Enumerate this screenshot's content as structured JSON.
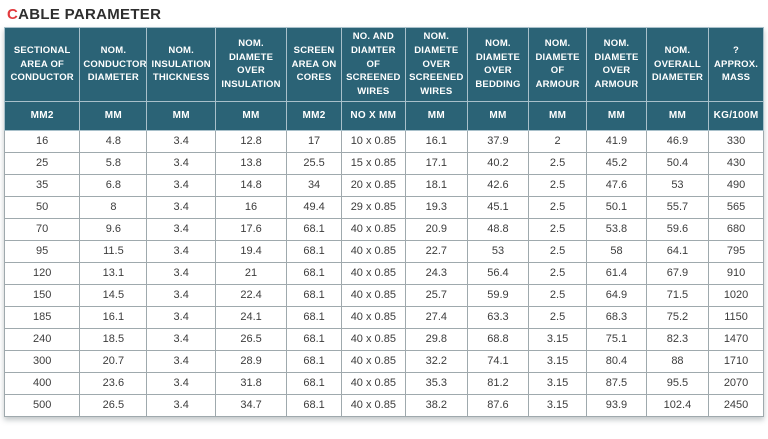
{
  "title": {
    "accent": "C",
    "rest": "ABLE PARAMETER"
  },
  "colors": {
    "header_bg": "#2b6376",
    "header_text": "#ffffff",
    "header_border": "#a8c0ca",
    "title_accent": "#e23a3e",
    "title_text": "#2e2e2e",
    "cell_border": "#9fa9ad",
    "cell_text": "#3c3c3c"
  },
  "chart_data": {
    "type": "table",
    "title": "CABLE PARAMETER",
    "columns": [
      "SECTIONAL AREA OF CONDUCTOR",
      "NOM. CONDUCTOR DIAMETER",
      "NOM. INSULATION THICKNESS",
      "NOM. DIAMETE OVER INSULATION",
      "SCREEN AREA ON CORES",
      "NO. AND DIAMTER OF SCREENED WIRES",
      "NOM. DIAMETE OVER SCREENED WIRES",
      "NOM. DIAMETE OVER BEDDING",
      "NOM. DIAMETE OF ARMOUR",
      "NOM. DIAMETE OVER ARMOUR",
      "NOM. OVERALL DIAMETER",
      "? APPROX. MASS"
    ],
    "units": [
      "MM2",
      "MM",
      "MM",
      "MM",
      "MM2",
      "NO X MM",
      "MM",
      "MM",
      "MM",
      "MM",
      "MM",
      "KG/100M"
    ],
    "rows": [
      [
        "16",
        "4.8",
        "3.4",
        "12.8",
        "17",
        "10 x 0.85",
        "16.1",
        "37.9",
        "2",
        "41.9",
        "46.9",
        "330"
      ],
      [
        "25",
        "5.8",
        "3.4",
        "13.8",
        "25.5",
        "15 x 0.85",
        "17.1",
        "40.2",
        "2.5",
        "45.2",
        "50.4",
        "430"
      ],
      [
        "35",
        "6.8",
        "3.4",
        "14.8",
        "34",
        "20 x 0.85",
        "18.1",
        "42.6",
        "2.5",
        "47.6",
        "53",
        "490"
      ],
      [
        "50",
        "8",
        "3.4",
        "16",
        "49.4",
        "29 x 0.85",
        "19.3",
        "45.1",
        "2.5",
        "50.1",
        "55.7",
        "565"
      ],
      [
        "70",
        "9.6",
        "3.4",
        "17.6",
        "68.1",
        "40 x 0.85",
        "20.9",
        "48.8",
        "2.5",
        "53.8",
        "59.6",
        "680"
      ],
      [
        "95",
        "11.5",
        "3.4",
        "19.4",
        "68.1",
        "40 x 0.85",
        "22.7",
        "53",
        "2.5",
        "58",
        "64.1",
        "795"
      ],
      [
        "120",
        "13.1",
        "3.4",
        "21",
        "68.1",
        "40 x 0.85",
        "24.3",
        "56.4",
        "2.5",
        "61.4",
        "67.9",
        "910"
      ],
      [
        "150",
        "14.5",
        "3.4",
        "22.4",
        "68.1",
        "40 x 0.85",
        "25.7",
        "59.9",
        "2.5",
        "64.9",
        "71.5",
        "1020"
      ],
      [
        "185",
        "16.1",
        "3.4",
        "24.1",
        "68.1",
        "40 x 0.85",
        "27.4",
        "63.3",
        "2.5",
        "68.3",
        "75.2",
        "1150"
      ],
      [
        "240",
        "18.5",
        "3.4",
        "26.5",
        "68.1",
        "40 x 0.85",
        "29.8",
        "68.8",
        "3.15",
        "75.1",
        "82.3",
        "1470"
      ],
      [
        "300",
        "20.7",
        "3.4",
        "28.9",
        "68.1",
        "40 x 0.85",
        "32.2",
        "74.1",
        "3.15",
        "80.4",
        "88",
        "1710"
      ],
      [
        "400",
        "23.6",
        "3.4",
        "31.8",
        "68.1",
        "40 x 0.85",
        "35.3",
        "81.2",
        "3.15",
        "87.5",
        "95.5",
        "2070"
      ],
      [
        "500",
        "26.5",
        "3.4",
        "34.7",
        "68.1",
        "40 x 0.85",
        "38.2",
        "87.6",
        "3.15",
        "93.9",
        "102.4",
        "2450"
      ]
    ]
  }
}
